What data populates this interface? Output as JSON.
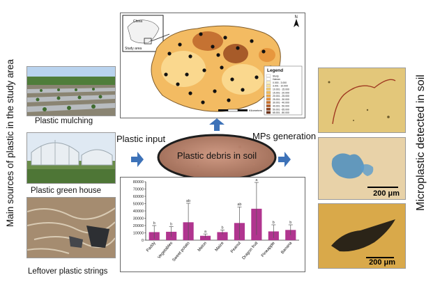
{
  "left_title": "Main sources of plastic in the study area",
  "right_title": "Microplastic detected in soil",
  "sources": [
    {
      "label": "Plastic mulching"
    },
    {
      "label": "Plastic green house"
    },
    {
      "label": "Leftover plastic strings"
    }
  ],
  "flow": {
    "input_label": "Plastic input",
    "generation_label": "MPs generation",
    "center_label": "Plastic debris in soil"
  },
  "map": {
    "inset_labels": [
      "China",
      "Study area"
    ],
    "legend_title": "Legend",
    "legend_items": [
      "Study",
      "Hainan",
      "0.000 - 3.000",
      "3.001 - 10.000",
      "10.001 - 15.000",
      "15.001 - 20.000",
      "20.001 - 25.000",
      "25.001 - 30.000",
      "30.001 - 40.000",
      "40.001 - 50.000",
      "50.001 - 65.000",
      "65.001 - 80.000"
    ],
    "legend_colors": [
      "#ffffff",
      "#ffffff",
      "#fdf2c4",
      "#fbe29a",
      "#f7cf74",
      "#f3bc58",
      "#eea644",
      "#e38e36",
      "#cf732b",
      "#b65a23",
      "#93431c",
      "#6d2f15"
    ],
    "north_symbol": "N",
    "scale_label": "Kilometers"
  },
  "micro_images": [
    {
      "scale": ""
    },
    {
      "scale": "200 μm"
    },
    {
      "scale": "200 μm"
    }
  ],
  "chart_data": {
    "type": "bar",
    "categories": [
      "Paddy",
      "Vegetables",
      "Sweet potato",
      "Melon",
      "Maize",
      "Peanut",
      "Dragon fruit",
      "Pineapple",
      "Banana"
    ],
    "values": [
      11000,
      11500,
      24500,
      6000,
      11000,
      23500,
      43000,
      12000,
      14000
    ],
    "errors": [
      9000,
      7000,
      26000,
      2500,
      3000,
      22000,
      36000,
      9000,
      7000
    ],
    "letters": [
      "b",
      "b",
      "ab",
      "a",
      "b",
      "ab",
      "a",
      "b",
      "b"
    ],
    "ylim": [
      0,
      80000
    ],
    "yticks": [
      0,
      10000,
      20000,
      30000,
      40000,
      50000,
      60000,
      70000,
      80000
    ],
    "bar_color": "#b0358f"
  },
  "colors": {
    "arrow": "#3d72b8"
  }
}
